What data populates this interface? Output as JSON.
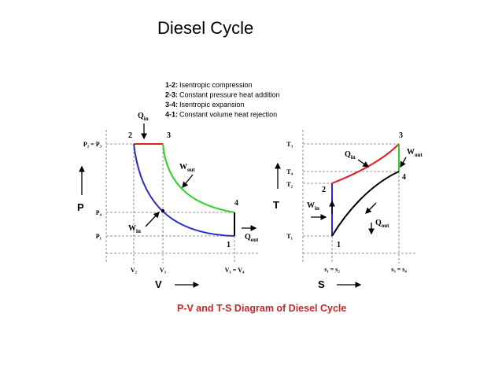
{
  "title": "Diesel Cycle",
  "legend": [
    {
      "label": "1-2:",
      "text": "Isentropic compression"
    },
    {
      "label": "2-3:",
      "text": "Constant pressure heat addition"
    },
    {
      "label": "3-4:",
      "text": "Isentropic expansion"
    },
    {
      "label": "4-1:",
      "text": "Constant volume heat rejection"
    }
  ],
  "pv_diagram": {
    "y_axis_label": "P",
    "x_axis_label": "V",
    "y_labels": [
      "P₂ = P₃",
      "P₄",
      "P₁"
    ],
    "x_labels": [
      "V₂",
      "V₃",
      "V₁ = V₄"
    ],
    "points": [
      "1",
      "2",
      "3",
      "4"
    ],
    "q_in": {
      "symbol": "Q",
      "subscript": "in"
    },
    "w_out": {
      "symbol": "W",
      "subscript": "out"
    },
    "w_in": {
      "symbol": "W",
      "subscript": "in"
    },
    "q_out": {
      "symbol": "Q",
      "subscript": "out"
    }
  },
  "ts_diagram": {
    "y_axis_label": "T",
    "x_axis_label": "S",
    "y_labels": [
      "T₃",
      "T₄",
      "T₂",
      "T₁"
    ],
    "x_labels": [
      "s₁ = s₂",
      "s₃ = s₄"
    ],
    "points": [
      "1",
      "2",
      "3",
      "4"
    ],
    "q_in": {
      "symbol": "Q",
      "subscript": "in"
    },
    "w_out": {
      "symbol": "W",
      "subscript": "out"
    },
    "w_in": {
      "symbol": "W",
      "subscript": "in"
    },
    "q_out": {
      "symbol": "Q",
      "subscript": "out"
    }
  },
  "caption": "P-V and T-S Diagram of Diesel Cycle"
}
